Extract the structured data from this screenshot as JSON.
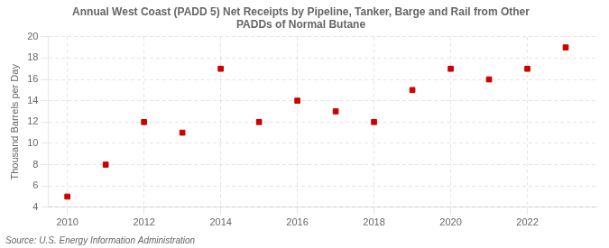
{
  "chart_data": {
    "type": "scatter",
    "title": "Annual West Coast (PADD 5) Net Receipts by Pipeline, Tanker, Barge and Rail from Other\nPADDs of Normal Butane",
    "ylabel": "Thousand Barrels per Day",
    "annotation": "Source: U.S. Energy Information Administration",
    "x": [
      2010,
      2011,
      2012,
      2013,
      2014,
      2015,
      2016,
      2017,
      2018,
      2019,
      2020,
      2021,
      2022,
      2023
    ],
    "values": [
      5.0,
      8.0,
      12.0,
      11.0,
      17.0,
      12.0,
      14.0,
      13.0,
      12.0,
      15.0,
      17.0,
      16.0,
      17.0,
      19.0
    ],
    "color": "#cc0000",
    "marker": "square",
    "xlim": [
      2009.5,
      2023.8
    ],
    "xticks": [
      2010,
      2012,
      2014,
      2016,
      2018,
      2020,
      2022
    ],
    "ylim": [
      4,
      20
    ],
    "yticks": [
      4,
      6,
      8,
      10,
      12,
      14,
      16,
      18,
      20
    ],
    "grid": true
  }
}
